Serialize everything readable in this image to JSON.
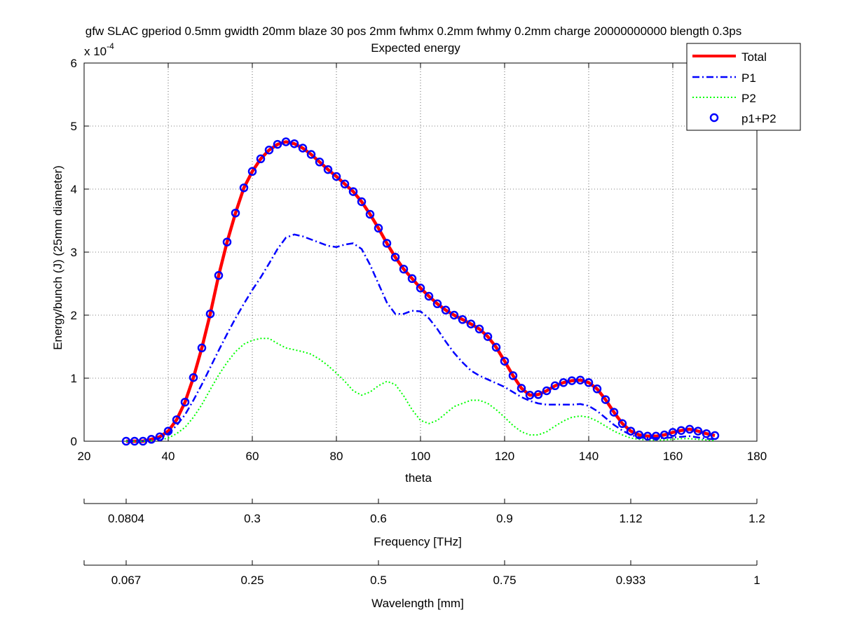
{
  "chart_data": {
    "type": "line",
    "title": "gfw SLAC gperiod 0.5mm gwidth 20mm blaze 30 pos 2mm fwhmx 0.2mm fwhmy 0.2mm charge 20000000000 blength 0.3ps",
    "subtitle": "Expected energy",
    "xlabel": "theta",
    "ylabel": "Energy/bunch (J) (25mm diameter)",
    "y_multiplier_label": "x 10",
    "y_multiplier_exponent": "-4",
    "xlim": [
      20,
      180
    ],
    "ylim": [
      0,
      6
    ],
    "xticks": [
      20,
      40,
      60,
      80,
      100,
      120,
      140,
      160,
      180
    ],
    "yticks": [
      0,
      1,
      2,
      3,
      4,
      5,
      6
    ],
    "grid": true,
    "legend_position": "top-right",
    "series": [
      {
        "name": "Total",
        "color": "#ff0000",
        "style": "solid",
        "x": [
          30,
          32,
          34,
          36,
          38,
          40,
          42,
          44,
          46,
          48,
          50,
          52,
          54,
          56,
          58,
          60,
          62,
          64,
          66,
          68,
          70,
          72,
          74,
          76,
          78,
          80,
          82,
          84,
          86,
          88,
          90,
          92,
          94,
          96,
          98,
          100,
          102,
          104,
          106,
          108,
          110,
          112,
          114,
          116,
          118,
          120,
          122,
          124,
          126,
          128,
          130,
          132,
          134,
          136,
          138,
          140,
          142,
          144,
          146,
          148,
          150,
          152,
          154,
          156,
          158,
          160,
          162,
          164,
          166,
          168,
          170
        ],
        "y": [
          0.0,
          0.0,
          0.0,
          0.03,
          0.07,
          0.16,
          0.34,
          0.62,
          1.01,
          1.48,
          2.02,
          2.63,
          3.16,
          3.62,
          4.02,
          4.28,
          4.48,
          4.62,
          4.71,
          4.75,
          4.72,
          4.65,
          4.55,
          4.43,
          4.31,
          4.2,
          4.08,
          3.96,
          3.8,
          3.6,
          3.38,
          3.14,
          2.92,
          2.73,
          2.58,
          2.43,
          2.3,
          2.18,
          2.08,
          2.0,
          1.93,
          1.86,
          1.78,
          1.66,
          1.49,
          1.27,
          1.04,
          0.84,
          0.73,
          0.74,
          0.8,
          0.88,
          0.93,
          0.96,
          0.97,
          0.93,
          0.83,
          0.66,
          0.46,
          0.28,
          0.16,
          0.1,
          0.08,
          0.08,
          0.1,
          0.14,
          0.17,
          0.19,
          0.16,
          0.12,
          0.09
        ]
      },
      {
        "name": "P1",
        "color": "#0000ff",
        "style": "dashdot",
        "x": [
          30,
          32,
          34,
          36,
          38,
          40,
          42,
          44,
          46,
          48,
          50,
          52,
          54,
          56,
          58,
          60,
          62,
          64,
          66,
          68,
          70,
          72,
          74,
          76,
          78,
          80,
          82,
          84,
          86,
          88,
          90,
          92,
          94,
          96,
          98,
          100,
          102,
          104,
          106,
          108,
          110,
          112,
          114,
          116,
          118,
          120,
          122,
          124,
          126,
          128,
          130,
          132,
          134,
          136,
          138,
          140,
          142,
          144,
          146,
          148,
          150,
          152,
          154,
          156,
          158,
          160,
          162,
          164,
          166,
          168,
          170
        ],
        "y": [
          0.0,
          0.0,
          0.0,
          0.02,
          0.05,
          0.12,
          0.25,
          0.42,
          0.65,
          0.9,
          1.17,
          1.44,
          1.7,
          1.95,
          2.18,
          2.4,
          2.6,
          2.82,
          3.05,
          3.23,
          3.28,
          3.25,
          3.2,
          3.15,
          3.1,
          3.08,
          3.12,
          3.14,
          3.05,
          2.8,
          2.5,
          2.2,
          2.02,
          2.02,
          2.07,
          2.06,
          1.95,
          1.78,
          1.58,
          1.4,
          1.25,
          1.12,
          1.04,
          0.98,
          0.92,
          0.86,
          0.78,
          0.7,
          0.64,
          0.6,
          0.58,
          0.58,
          0.58,
          0.58,
          0.59,
          0.56,
          0.48,
          0.37,
          0.26,
          0.17,
          0.1,
          0.06,
          0.05,
          0.05,
          0.05,
          0.06,
          0.07,
          0.08,
          0.06,
          0.04,
          0.03
        ]
      },
      {
        "name": "P2",
        "color": "#00ff00",
        "style": "dotted",
        "x": [
          30,
          32,
          34,
          36,
          38,
          40,
          42,
          44,
          46,
          48,
          50,
          52,
          54,
          56,
          58,
          60,
          62,
          64,
          66,
          68,
          70,
          72,
          74,
          76,
          78,
          80,
          82,
          84,
          86,
          88,
          90,
          92,
          94,
          96,
          98,
          100,
          102,
          104,
          106,
          108,
          110,
          112,
          114,
          116,
          118,
          120,
          122,
          124,
          126,
          128,
          130,
          132,
          134,
          136,
          138,
          140,
          142,
          144,
          146,
          148,
          150,
          152,
          154,
          156,
          158,
          160,
          162,
          164,
          166,
          168,
          170
        ],
        "y": [
          0.0,
          0.0,
          0.0,
          0.01,
          0.02,
          0.05,
          0.12,
          0.22,
          0.38,
          0.58,
          0.82,
          1.05,
          1.25,
          1.42,
          1.54,
          1.6,
          1.63,
          1.63,
          1.55,
          1.48,
          1.45,
          1.42,
          1.38,
          1.3,
          1.2,
          1.08,
          0.95,
          0.8,
          0.73,
          0.78,
          0.88,
          0.95,
          0.9,
          0.72,
          0.5,
          0.33,
          0.28,
          0.33,
          0.44,
          0.55,
          0.6,
          0.65,
          0.65,
          0.6,
          0.5,
          0.38,
          0.25,
          0.15,
          0.1,
          0.1,
          0.15,
          0.24,
          0.32,
          0.38,
          0.4,
          0.38,
          0.32,
          0.24,
          0.16,
          0.1,
          0.05,
          0.03,
          0.02,
          0.02,
          0.02,
          0.03,
          0.04,
          0.04,
          0.03,
          0.02,
          0.01
        ]
      },
      {
        "name": "p1+P2",
        "color": "#0000ff",
        "style": "markers-circle",
        "x": [
          30,
          32,
          34,
          36,
          38,
          40,
          42,
          44,
          46,
          48,
          50,
          52,
          54,
          56,
          58,
          60,
          62,
          64,
          66,
          68,
          70,
          72,
          74,
          76,
          78,
          80,
          82,
          84,
          86,
          88,
          90,
          92,
          94,
          96,
          98,
          100,
          102,
          104,
          106,
          108,
          110,
          112,
          114,
          116,
          118,
          120,
          122,
          124,
          126,
          128,
          130,
          132,
          134,
          136,
          138,
          140,
          142,
          144,
          146,
          148,
          150,
          152,
          154,
          156,
          158,
          160,
          162,
          164,
          166,
          168,
          170
        ],
        "y": [
          0.0,
          0.0,
          0.0,
          0.03,
          0.07,
          0.16,
          0.34,
          0.62,
          1.01,
          1.48,
          2.02,
          2.63,
          3.16,
          3.62,
          4.02,
          4.28,
          4.48,
          4.62,
          4.71,
          4.75,
          4.72,
          4.65,
          4.55,
          4.43,
          4.31,
          4.2,
          4.08,
          3.96,
          3.8,
          3.6,
          3.38,
          3.14,
          2.92,
          2.73,
          2.58,
          2.43,
          2.3,
          2.18,
          2.08,
          2.0,
          1.93,
          1.86,
          1.78,
          1.66,
          1.49,
          1.27,
          1.04,
          0.84,
          0.73,
          0.74,
          0.8,
          0.88,
          0.93,
          0.96,
          0.97,
          0.93,
          0.83,
          0.66,
          0.46,
          0.28,
          0.16,
          0.1,
          0.08,
          0.08,
          0.1,
          0.14,
          0.17,
          0.19,
          0.16,
          0.12,
          0.09
        ]
      }
    ],
    "secondary_axes": [
      {
        "label": "Frequency [THz]",
        "ticks": [
          {
            "theta": 30,
            "label": "0.0804"
          },
          {
            "theta": 60,
            "label": "0.3"
          },
          {
            "theta": 90,
            "label": "0.6"
          },
          {
            "theta": 120,
            "label": "0.9"
          },
          {
            "theta": 150,
            "label": "1.12"
          },
          {
            "theta": 180,
            "label": "1.2"
          }
        ]
      },
      {
        "label": "Wavelength [mm]",
        "ticks": [
          {
            "theta": 30,
            "label": "0.067"
          },
          {
            "theta": 60,
            "label": "0.25"
          },
          {
            "theta": 90,
            "label": "0.5"
          },
          {
            "theta": 120,
            "label": "0.75"
          },
          {
            "theta": 150,
            "label": "0.933"
          },
          {
            "theta": 180,
            "label": "1"
          }
        ]
      }
    ]
  }
}
